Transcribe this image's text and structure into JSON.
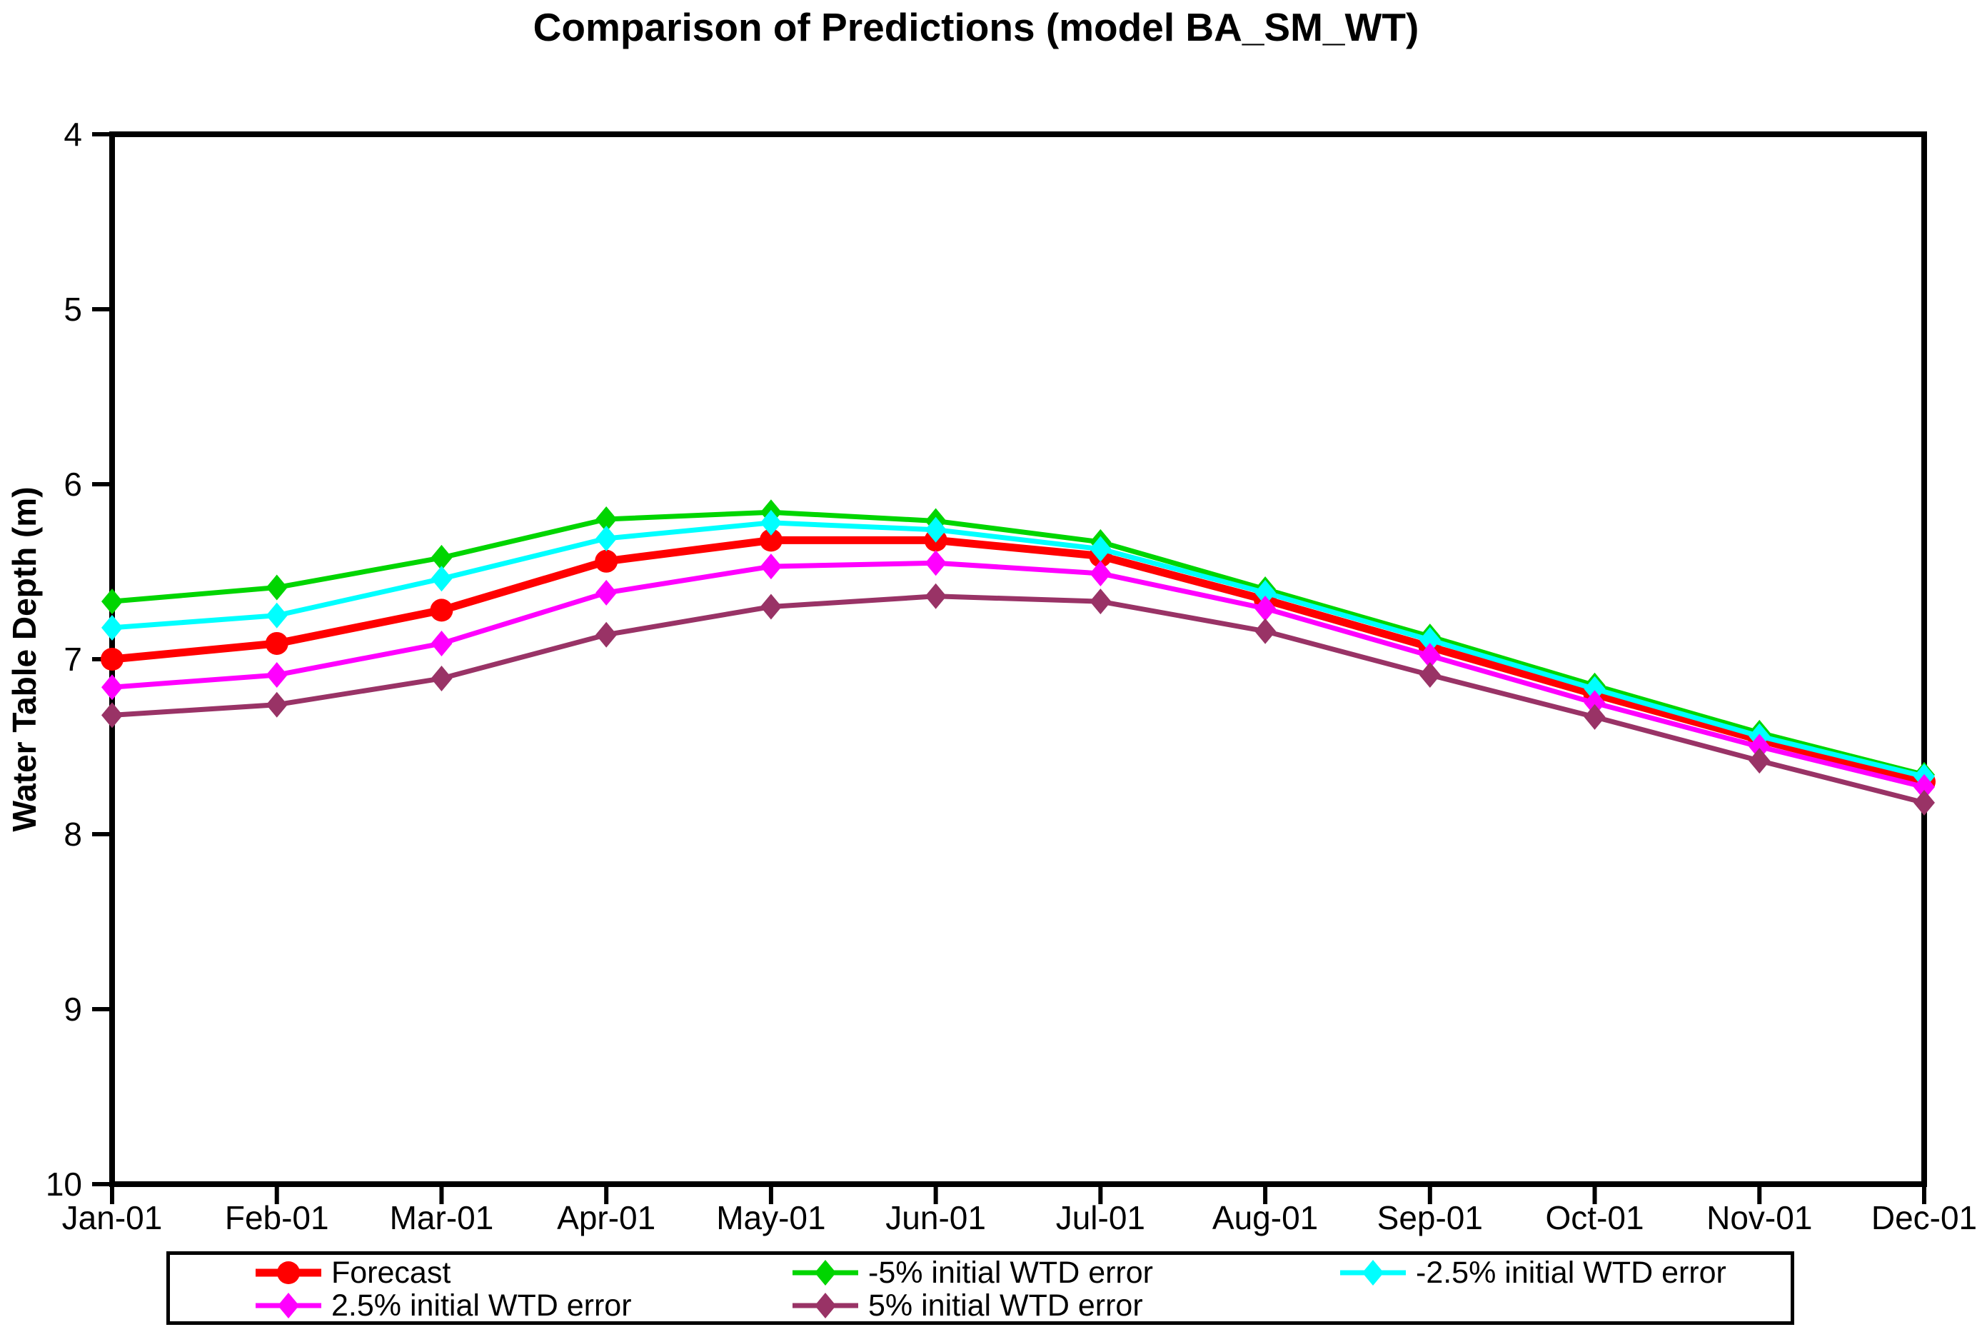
{
  "chart": {
    "title": "Comparison of Predictions (model BA_SM_WT)",
    "y_axis_title": "Water Table Depth (m)"
  },
  "chart_data": {
    "type": "line",
    "title": "Comparison of Predictions (model BA_SM_WT)",
    "xlabel": "",
    "ylabel": "Water Table Depth (m)",
    "categories": [
      "Jan-01",
      "Feb-01",
      "Mar-01",
      "Apr-01",
      "May-01",
      "Jun-01",
      "Jul-01",
      "Aug-01",
      "Sep-01",
      "Oct-01",
      "Nov-01",
      "Dec-01"
    ],
    "y_axis": {
      "min": 4,
      "max": 10,
      "ticks": [
        "4",
        "5",
        "6",
        "7",
        "8",
        "9",
        "10"
      ],
      "note": "depth axis, values increase downward; 4 at top, 10 at bottom"
    },
    "grid": "off",
    "legend_position": "bottom",
    "series": [
      {
        "name": "Forecast",
        "color": "#FF0000",
        "marker": "circle",
        "line_width": 11,
        "values": [
          7.0,
          6.91,
          6.72,
          6.44,
          6.32,
          6.32,
          6.41,
          6.66,
          6.93,
          7.2,
          7.46,
          7.7
        ]
      },
      {
        "name": "-5% initial WTD error",
        "color": "#00D500",
        "marker": "diamond",
        "line_width": 7,
        "values": [
          6.67,
          6.59,
          6.42,
          6.2,
          6.16,
          6.21,
          6.33,
          6.6,
          6.87,
          7.15,
          7.42,
          7.66
        ]
      },
      {
        "name": "-2.5% initial WTD error",
        "color": "#00FFFF",
        "marker": "diamond",
        "line_width": 7,
        "values": [
          6.82,
          6.75,
          6.54,
          6.31,
          6.22,
          6.26,
          6.37,
          6.62,
          6.89,
          7.17,
          7.44,
          7.67
        ]
      },
      {
        "name": "2.5% initial WTD error",
        "color": "#FF00FF",
        "marker": "diamond",
        "line_width": 7,
        "values": [
          7.16,
          7.09,
          6.91,
          6.62,
          6.47,
          6.45,
          6.51,
          6.71,
          6.98,
          7.25,
          7.5,
          7.73
        ]
      },
      {
        "name": "5% initial WTD error",
        "color": "#993366",
        "marker": "diamond",
        "line_width": 7,
        "values": [
          7.32,
          7.26,
          7.11,
          6.86,
          6.7,
          6.64,
          6.67,
          6.84,
          7.09,
          7.33,
          7.58,
          7.82
        ]
      }
    ]
  },
  "colors": {
    "axis": "#000000",
    "text": "#000000",
    "background": "#FFFFFF"
  }
}
